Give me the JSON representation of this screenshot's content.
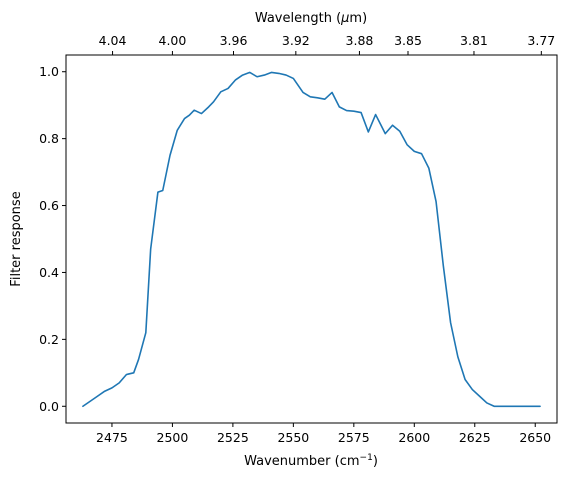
{
  "chart_data": {
    "type": "line",
    "title": "",
    "xlabel": "Wavenumber (cm",
    "xlabel_sup": "−1",
    "xlabel_close": ")",
    "ylabel": "Filter response",
    "top_xlabel_prefix": "Wavelength (",
    "top_xlabel_mu": "μ",
    "top_xlabel_suffix": "m)",
    "xlim": [
      2456,
      2659
    ],
    "ylim": [
      -0.05,
      1.05
    ],
    "grid": false,
    "x_ticks": [
      2475,
      2500,
      2525,
      2550,
      2575,
      2600,
      2625,
      2650
    ],
    "y_ticks": [
      0.0,
      0.2,
      0.4,
      0.6,
      0.8,
      1.0
    ],
    "top_ticks": [
      "4.04",
      "4.00",
      "3.96",
      "3.92",
      "3.88",
      "3.85",
      "3.81",
      "3.77"
    ],
    "series": [
      {
        "color": "#1f77b4",
        "x": [
          2463,
          2466,
          2469,
          2472,
          2475,
          2478,
          2481,
          2484,
          2486,
          2489,
          2491,
          2494,
          2496,
          2499,
          2502,
          2505,
          2507,
          2509,
          2512,
          2515,
          2517,
          2520,
          2523,
          2526,
          2529,
          2532,
          2535,
          2538,
          2541,
          2544,
          2547,
          2550,
          2554,
          2557,
          2560,
          2563,
          2566,
          2569,
          2572,
          2575,
          2578,
          2581,
          2584,
          2588,
          2591,
          2594,
          2597,
          2600,
          2603,
          2606,
          2609,
          2612,
          2615,
          2618,
          2621,
          2624,
          2627,
          2630,
          2633,
          2636,
          2639,
          2642,
          2645,
          2649,
          2652
        ],
        "y": [
          0.0,
          0.015,
          0.03,
          0.045,
          0.055,
          0.07,
          0.095,
          0.1,
          0.14,
          0.22,
          0.47,
          0.64,
          0.645,
          0.75,
          0.825,
          0.86,
          0.87,
          0.885,
          0.875,
          0.895,
          0.91,
          0.94,
          0.95,
          0.975,
          0.99,
          0.998,
          0.985,
          0.99,
          0.998,
          0.995,
          0.99,
          0.98,
          0.938,
          0.925,
          0.922,
          0.918,
          0.938,
          0.895,
          0.884,
          0.882,
          0.878,
          0.82,
          0.872,
          0.815,
          0.84,
          0.822,
          0.782,
          0.762,
          0.755,
          0.712,
          0.612,
          0.42,
          0.25,
          0.148,
          0.08,
          0.05,
          0.03,
          0.01,
          0.0,
          0.0,
          0.0,
          0.0,
          0.0,
          0.0,
          0.0
        ]
      }
    ]
  }
}
